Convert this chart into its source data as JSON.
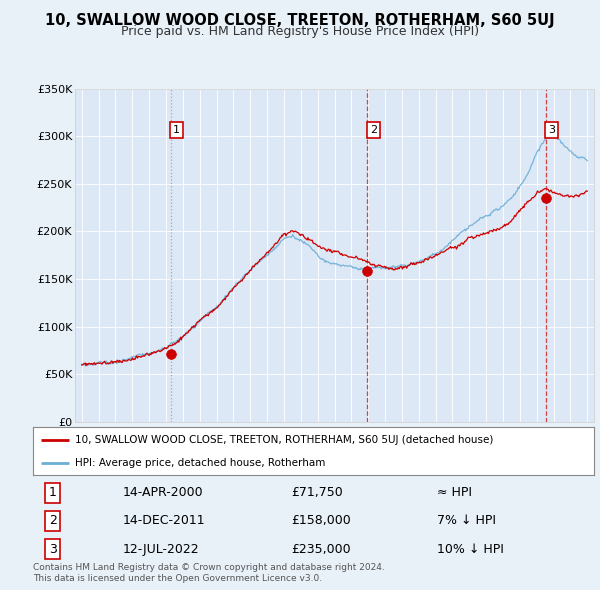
{
  "title": "10, SWALLOW WOOD CLOSE, TREETON, ROTHERHAM, S60 5UJ",
  "subtitle": "Price paid vs. HM Land Registry's House Price Index (HPI)",
  "sale_dates_num": [
    2000.28,
    2011.95,
    2022.53
  ],
  "sale_prices": [
    71750,
    158000,
    235000
  ],
  "sale_labels": [
    "1",
    "2",
    "3"
  ],
  "sale_color": "#cc0000",
  "hpi_color": "#6baed6",
  "vline_color_gray": "#999999",
  "vline_color_red": "#cc0000",
  "background_color": "#e8f0f8",
  "plot_bg": "#dce8f5",
  "legend_entries": [
    "10, SWALLOW WOOD CLOSE, TREETON, ROTHERHAM, S60 5UJ (detached house)",
    "HPI: Average price, detached house, Rotherham"
  ],
  "table_rows": [
    [
      "1",
      "14-APR-2000",
      "£71,750",
      "≈ HPI"
    ],
    [
      "2",
      "14-DEC-2011",
      "£158,000",
      "7% ↓ HPI"
    ],
    [
      "3",
      "12-JUL-2022",
      "£235,000",
      "10% ↓ HPI"
    ]
  ],
  "footnote": "Contains HM Land Registry data © Crown copyright and database right 2024.\nThis data is licensed under the Open Government Licence v3.0.",
  "ylim": [
    0,
    350000
  ],
  "yticks": [
    0,
    50000,
    100000,
    150000,
    200000,
    250000,
    300000,
    350000
  ],
  "xlim_start": 1994.6,
  "xlim_end": 2025.4,
  "hpi_knots_x": [
    1995,
    1996,
    1997,
    1998,
    1999,
    2000,
    2001,
    2002,
    2003,
    2004,
    2005,
    2006,
    2007,
    2007.5,
    2008,
    2008.5,
    2009,
    2009.5,
    2010,
    2010.5,
    2011,
    2011.5,
    2012,
    2012.5,
    2013,
    2013.5,
    2014,
    2014.5,
    2015,
    2015.5,
    2016,
    2016.5,
    2017,
    2017.5,
    2018,
    2018.5,
    2019,
    2019.5,
    2020,
    2020.5,
    2021,
    2021.5,
    2022,
    2022.5,
    2023,
    2023.5,
    2024,
    2024.5,
    2025
  ],
  "hpi_knots_y": [
    60000,
    61000,
    63000,
    66000,
    70000,
    76000,
    88000,
    103000,
    118000,
    138000,
    158000,
    173000,
    192000,
    195000,
    190000,
    183000,
    175000,
    170000,
    167000,
    165000,
    163000,
    162000,
    163000,
    164000,
    165000,
    166000,
    168000,
    170000,
    173000,
    177000,
    182000,
    188000,
    196000,
    204000,
    210000,
    215000,
    220000,
    225000,
    230000,
    238000,
    250000,
    265000,
    285000,
    300000,
    305000,
    295000,
    285000,
    278000,
    275000
  ],
  "red_knots_x": [
    1995,
    1996,
    1997,
    1998,
    1999,
    2000,
    2001,
    2002,
    2003,
    2004,
    2005,
    2006,
    2007,
    2007.5,
    2008,
    2008.5,
    2009,
    2009.5,
    2010,
    2010.5,
    2011,
    2011.5,
    2012,
    2012.5,
    2013,
    2013.5,
    2014,
    2014.5,
    2015,
    2015.5,
    2016,
    2016.5,
    2017,
    2017.5,
    2018,
    2018.5,
    2019,
    2019.5,
    2020,
    2020.5,
    2021,
    2021.5,
    2022,
    2022.5,
    2023,
    2023.5,
    2024,
    2024.5,
    2025
  ],
  "red_knots_y": [
    60000,
    61000,
    63000,
    66000,
    70000,
    76000,
    88000,
    103000,
    118000,
    138000,
    158000,
    173000,
    192000,
    195000,
    190000,
    183000,
    175000,
    170000,
    167000,
    165000,
    163000,
    162000,
    158000,
    155000,
    153000,
    152000,
    154000,
    156000,
    158000,
    161000,
    165000,
    170000,
    175000,
    180000,
    185000,
    188000,
    191000,
    194000,
    198000,
    205000,
    218000,
    228000,
    238000,
    243000,
    242000,
    238000,
    237000,
    238000,
    242000
  ]
}
